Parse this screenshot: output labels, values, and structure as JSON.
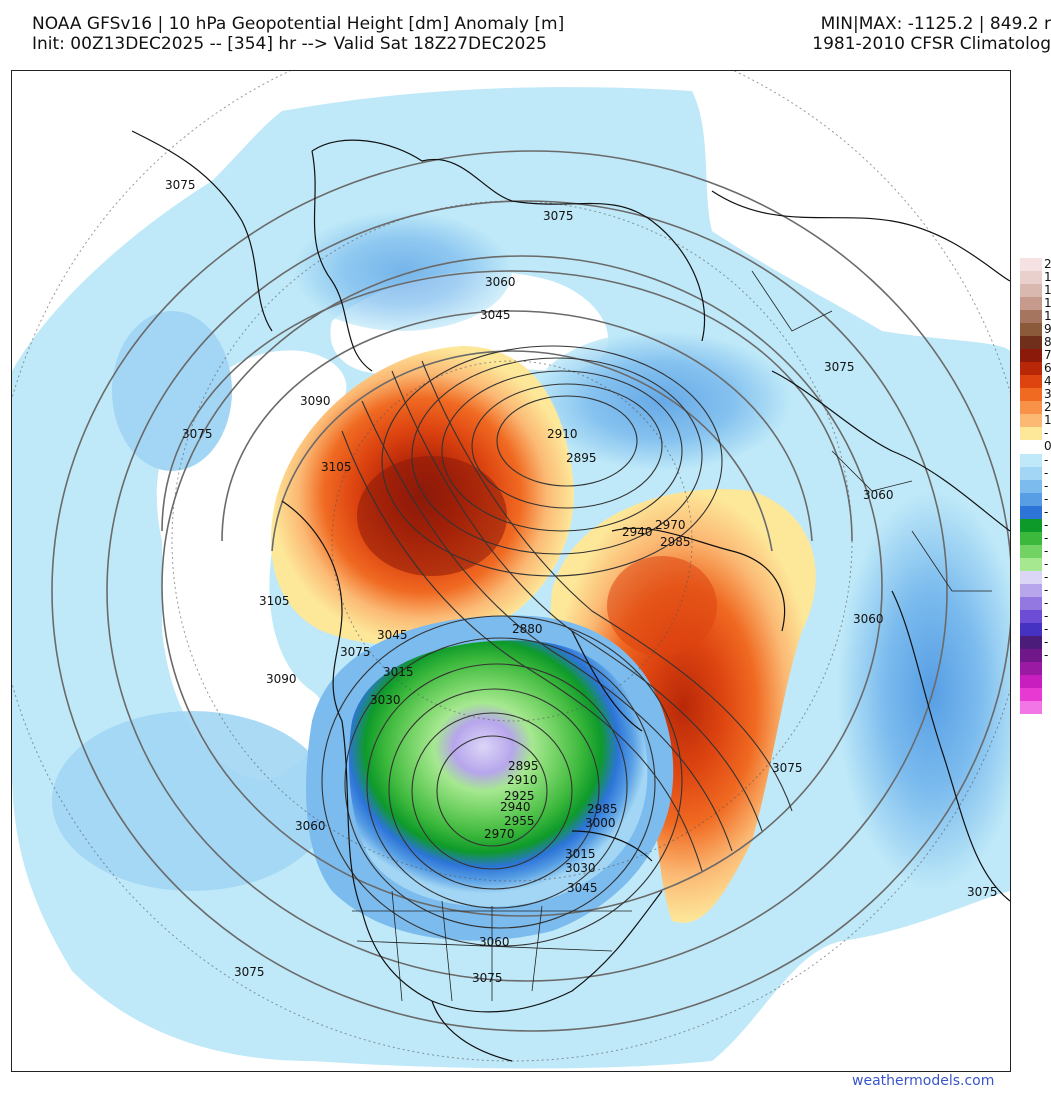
{
  "header": {
    "line1_left": "NOAA GFSv16 | 10 hPa Geopotential Height [dm] Anomaly [m]",
    "line2_left": "Init: 00Z13DEC2025 -- [354] hr --> Valid Sat 18Z27DEC2025",
    "line1_right": "MIN|MAX: -1125.2 | 849.2 r",
    "line2_right": "1981-2010 CFSR Climatolog"
  },
  "contour_labels": [
    {
      "text": "3075",
      "name": "contour-3075-nw"
    },
    {
      "text": "3075",
      "name": "contour-3075-siberia"
    },
    {
      "text": "3060",
      "name": "contour-3060-north"
    },
    {
      "text": "3045",
      "name": "contour-3045-north"
    },
    {
      "text": "3075",
      "name": "contour-3075-ne"
    },
    {
      "text": "3090",
      "name": "contour-3090-west"
    },
    {
      "text": "3075",
      "name": "contour-3075-west"
    },
    {
      "text": "3105",
      "name": "contour-3105-west"
    },
    {
      "text": "2910",
      "name": "contour-2910-pole"
    },
    {
      "text": "2895",
      "name": "contour-2895-pole"
    },
    {
      "text": "3060",
      "name": "contour-3060-east"
    },
    {
      "text": "2940",
      "name": "contour-2940-east"
    },
    {
      "text": "2970",
      "name": "contour-2970-east"
    },
    {
      "text": "2985",
      "name": "contour-2985-east"
    },
    {
      "text": "3105",
      "name": "contour-3105-sw"
    },
    {
      "text": "3045",
      "name": "contour-3045-alaska"
    },
    {
      "text": "3075",
      "name": "contour-3075-alaska"
    },
    {
      "text": "2880",
      "name": "contour-2880-arctic"
    },
    {
      "text": "3060",
      "name": "contour-3060-atlantic"
    },
    {
      "text": "3015",
      "name": "contour-3015-west"
    },
    {
      "text": "3090",
      "name": "contour-3090-pacific"
    },
    {
      "text": "3030",
      "name": "contour-3030-west"
    },
    {
      "text": "2895",
      "name": "contour-2895-canada"
    },
    {
      "text": "2910",
      "name": "contour-2910-canada"
    },
    {
      "text": "2925",
      "name": "contour-2925-canada"
    },
    {
      "text": "2940",
      "name": "contour-2940-canada"
    },
    {
      "text": "2955",
      "name": "contour-2955-canada"
    },
    {
      "text": "2970",
      "name": "contour-2970-canada"
    },
    {
      "text": "2985",
      "name": "contour-2985-canada"
    },
    {
      "text": "3000",
      "name": "contour-3000-canada"
    },
    {
      "text": "3015",
      "name": "contour-3015-canada"
    },
    {
      "text": "3030",
      "name": "contour-3030-canada"
    },
    {
      "text": "3045",
      "name": "contour-3045-canada"
    },
    {
      "text": "3060",
      "name": "contour-3060-pacific"
    },
    {
      "text": "3060",
      "name": "contour-3060-usa"
    },
    {
      "text": "3075",
      "name": "contour-3075-atlantic"
    },
    {
      "text": "3075",
      "name": "contour-3075-east-atl"
    },
    {
      "text": "3075",
      "name": "contour-3075-pacific-s"
    },
    {
      "text": "3075",
      "name": "contour-3075-gulf"
    }
  ],
  "colorbar": {
    "labels": [
      "2",
      "1",
      "1",
      "1",
      "1",
      "9",
      "8",
      "7",
      "6",
      "4",
      "3",
      "2",
      "1",
      "0",
      "-",
      "-",
      "-",
      "-",
      "-",
      "-",
      "-",
      "-",
      "-",
      "-",
      "-",
      "-",
      "-",
      "-",
      "-",
      "-",
      "-"
    ],
    "colors": [
      "#f6e2e2",
      "#ead0cc",
      "#d9b8b0",
      "#c69a8c",
      "#a67560",
      "#8a5a3a",
      "#6f2f1a",
      "#8c1a0a",
      "#b82808",
      "#dd4410",
      "#f06a22",
      "#f79248",
      "#fbb974",
      "#fde89a",
      "#ffffff",
      "#bfe9f8",
      "#a2d6f4",
      "#7bbbee",
      "#579ee4",
      "#2c74d8",
      "#0e9a2a",
      "#3cb83c",
      "#72d264",
      "#a6e890",
      "#dcd6f6",
      "#b7a6ec",
      "#9378e2",
      "#6d4cd6",
      "#4632c2",
      "#4c1c7a",
      "#70188a",
      "#9a1aa4",
      "#c81ec0",
      "#e83ad2",
      "#f276e6"
    ],
    "zero_label": "0"
  },
  "credit": "weathermodels.com"
}
